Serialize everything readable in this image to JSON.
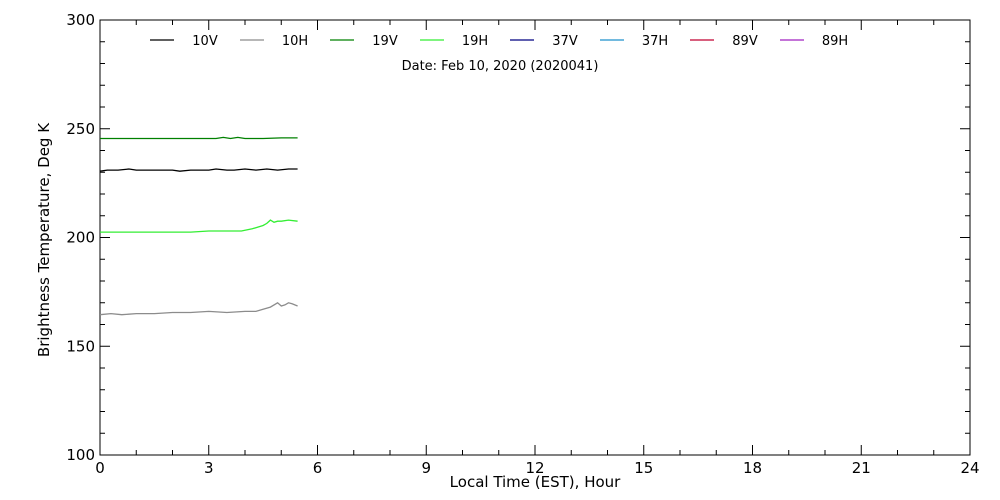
{
  "chart_data": {
    "type": "line",
    "annotation": "Date: Feb 10, 2020 (2020041)",
    "xlabel": "Local Time (EST), Hour",
    "ylabel": "Brightness Temperature, Deg K",
    "xlim": [
      0,
      24
    ],
    "ylim": [
      100,
      300
    ],
    "xticks": [
      0,
      3,
      6,
      9,
      12,
      15,
      18,
      21,
      24
    ],
    "yticks": [
      100,
      150,
      200,
      250,
      300
    ],
    "grid": false,
    "legend_position": "top",
    "series": [
      {
        "name": "10V",
        "color": "#000000",
        "x": [
          0,
          0.2,
          0.5,
          0.8,
          1.0,
          1.5,
          2.0,
          2.2,
          2.5,
          3.0,
          3.2,
          3.5,
          3.7,
          4.0,
          4.3,
          4.6,
          4.9,
          5.2,
          5.45
        ],
        "y": [
          230.5,
          231,
          231,
          231.5,
          231,
          231,
          231,
          230.5,
          231,
          231,
          231.5,
          231,
          231,
          231.5,
          231,
          231.5,
          231,
          231.5,
          231.5
        ]
      },
      {
        "name": "10H",
        "color": "#8c8c8c",
        "x": [
          0,
          0.3,
          0.6,
          1.0,
          1.5,
          2.0,
          2.5,
          3.0,
          3.5,
          4.0,
          4.3,
          4.5,
          4.7,
          4.9,
          5.0,
          5.1,
          5.2,
          5.3,
          5.45
        ],
        "y": [
          164.5,
          165,
          164.5,
          165,
          165,
          165.5,
          165.5,
          166,
          165.5,
          166,
          166,
          167,
          168,
          170,
          168.5,
          169,
          170,
          169.5,
          168.5
        ]
      },
      {
        "name": "19V",
        "color": "#008000",
        "x": [
          0,
          0.5,
          1.0,
          1.5,
          2.0,
          2.5,
          3.0,
          3.2,
          3.4,
          3.6,
          3.8,
          4.0,
          4.5,
          5.0,
          5.45
        ],
        "y": [
          245.5,
          245.5,
          245.5,
          245.5,
          245.5,
          245.5,
          245.5,
          245.5,
          246,
          245.5,
          246,
          245.5,
          245.5,
          245.8,
          245.8
        ]
      },
      {
        "name": "19H",
        "color": "#33ee33",
        "x": [
          0,
          0.5,
          1.0,
          1.5,
          2.0,
          2.5,
          3.0,
          3.5,
          3.9,
          4.2,
          4.5,
          4.6,
          4.7,
          4.8,
          4.9,
          5.0,
          5.2,
          5.45
        ],
        "y": [
          202.5,
          202.5,
          202.5,
          202.5,
          202.5,
          202.5,
          203,
          203,
          203,
          204,
          205.5,
          206.5,
          208,
          207,
          207.5,
          207.5,
          208,
          207.5
        ]
      },
      {
        "name": "37V",
        "color": "#000080",
        "x": [],
        "y": []
      },
      {
        "name": "37H",
        "color": "#1e90cc",
        "x": [],
        "y": []
      },
      {
        "name": "89V",
        "color": "#c00030",
        "x": [],
        "y": []
      },
      {
        "name": "89H",
        "color": "#a020c0",
        "x": [],
        "y": []
      }
    ]
  }
}
